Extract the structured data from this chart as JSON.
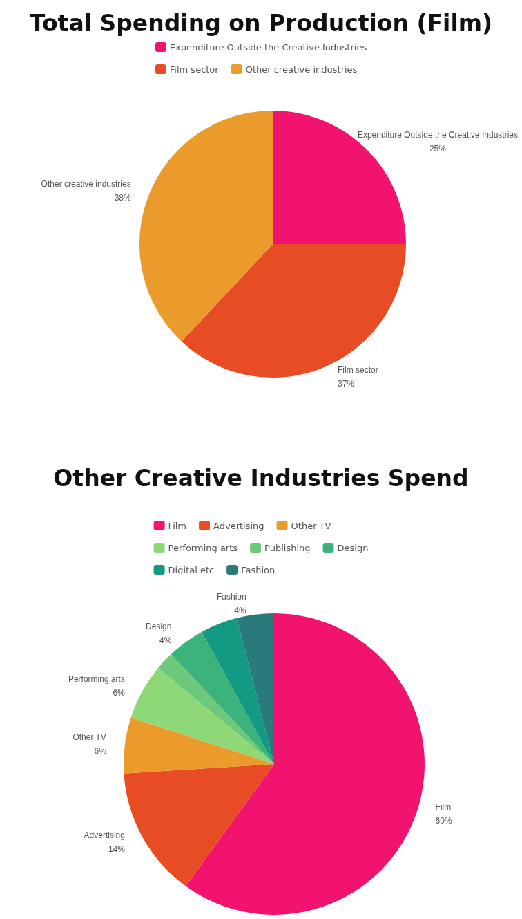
{
  "chart_data": [
    {
      "type": "pie",
      "title": "Total Spending on Production (Film)",
      "categories": [
        "Expenditure Outside the Creative Industries",
        "Film sector",
        "Other creative industries"
      ],
      "values": [
        25,
        37,
        38
      ],
      "colors": [
        "#f2136f",
        "#e84c25",
        "#eb9a2c"
      ],
      "value_labels": [
        "25%",
        "37%",
        "38%"
      ],
      "legend": "top"
    },
    {
      "type": "pie",
      "title": "Other Creative Industries Spend",
      "categories": [
        "Film",
        "Advertising",
        "Other TV",
        "Performing arts",
        "Publishing",
        "Design",
        "Digital etc",
        "Fashion"
      ],
      "values": [
        60,
        14,
        6,
        6,
        2,
        4,
        4,
        4
      ],
      "colors": [
        "#f2136f",
        "#e84c25",
        "#eb9a2c",
        "#8ed878",
        "#6cc97c",
        "#3db37c",
        "#139a83",
        "#2a7a7c"
      ],
      "value_labels": [
        "60%",
        "14%",
        "6%",
        "6%",
        null,
        "4%",
        null,
        "4%"
      ],
      "legend": "top"
    }
  ]
}
